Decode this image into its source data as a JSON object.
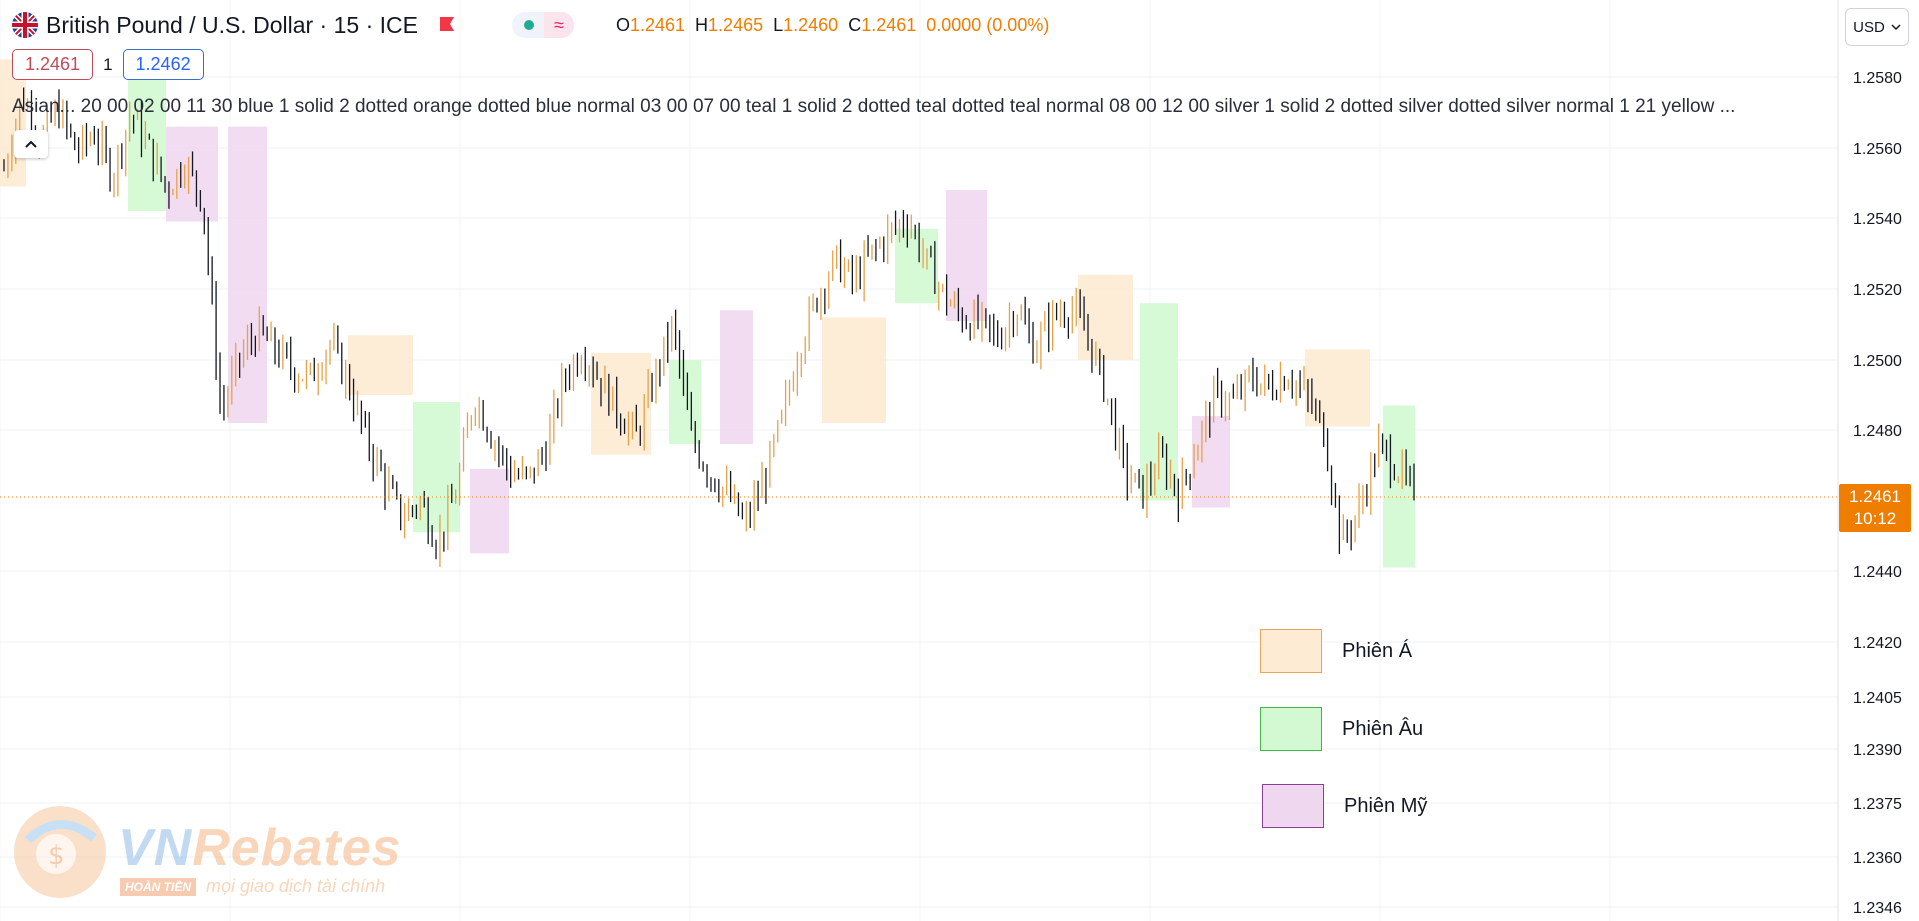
{
  "header": {
    "symbol_title": "British Pound / U.S. Dollar · 15 · ICE",
    "status_wave_glyph": "≈",
    "ohlc": [
      {
        "key": "O",
        "value": "1.2461"
      },
      {
        "key": "H",
        "value": "1.2465"
      },
      {
        "key": "L",
        "value": "1.2460"
      },
      {
        "key": "C",
        "value": "1.2461"
      }
    ],
    "change": "0.0000 (0.00%)"
  },
  "trade": {
    "sell_price": "1.2461",
    "quantity": "1",
    "buy_price": "1.2462"
  },
  "indicator": {
    "text": "Asian... 20 00 02 00 11 30 blue 1 solid 2 dotted orange dotted blue normal 03 00 07 00 teal 1 solid 2 dotted teal dotted teal normal 08 00 12 00 silver 1 solid 2 dotted silver dotted silver normal 1 21 yellow ..."
  },
  "currency": {
    "label": "USD"
  },
  "last_price": {
    "price": "1.2461",
    "countdown": "10:12"
  },
  "legend": {
    "items": [
      {
        "label": "Phiên Á",
        "fill": "#fdebd3",
        "border": "#e8a65a"
      },
      {
        "label": "Phiên Âu",
        "fill": "#d2f9d2",
        "border": "#43b54a"
      },
      {
        "label": "Phiên Mỹ",
        "fill": "#efd8ef",
        "border": "#8e3e9a"
      }
    ]
  },
  "watermark": {
    "brand_prefix": "VN",
    "brand_suffix": "Rebates",
    "badge": "HOÀN TIỀN",
    "tagline": "mọi giao dịch tài chính"
  },
  "colors": {
    "accent_orange": "#ef7d00",
    "asia_session": "#fdebd3",
    "europe_session": "#d2f9d2",
    "us_session": "#efd8ef",
    "candle_up": "#e8a14a",
    "candle_down": "#131722"
  },
  "chart_data": {
    "type": "candlestick",
    "instrument": "GBP/USD",
    "timeframe": "15",
    "y_ticks": [
      1.258,
      1.256,
      1.254,
      1.252,
      1.25,
      1.248,
      1.244,
      1.242,
      1.2405,
      1.239,
      1.2375,
      1.236,
      1.2346
    ],
    "last_price": 1.2461,
    "sessions": [
      {
        "session": "asia",
        "low": 1.2549,
        "high": 1.2585
      },
      {
        "session": "europe",
        "low": 1.2542,
        "high": 1.2585
      },
      {
        "session": "us",
        "low": 1.2539,
        "high": 1.2566
      },
      {
        "session": "us",
        "low": 1.2482,
        "high": 1.2566
      },
      {
        "session": "asia",
        "low": 1.249,
        "high": 1.2507
      },
      {
        "session": "europe",
        "low": 1.2451,
        "high": 1.2488
      },
      {
        "session": "us",
        "low": 1.2445,
        "high": 1.2469
      },
      {
        "session": "asia",
        "low": 1.2473,
        "high": 1.2502
      },
      {
        "session": "europe",
        "low": 1.2476,
        "high": 1.25
      },
      {
        "session": "us",
        "low": 1.2476,
        "high": 1.2514
      },
      {
        "session": "asia",
        "low": 1.2482,
        "high": 1.2512
      },
      {
        "session": "europe",
        "low": 1.2516,
        "high": 1.2537
      },
      {
        "session": "us",
        "low": 1.2511,
        "high": 1.2548
      },
      {
        "session": "asia",
        "low": 1.25,
        "high": 1.2524
      },
      {
        "session": "europe",
        "low": 1.246,
        "high": 1.2516
      },
      {
        "session": "us",
        "low": 1.2458,
        "high": 1.2484
      },
      {
        "session": "asia",
        "low": 1.2481,
        "high": 1.2503
      },
      {
        "session": "europe",
        "low": 1.2441,
        "high": 1.2487
      }
    ],
    "close_path": [
      1.2554,
      1.2575,
      1.2562,
      1.2571,
      1.2559,
      1.2564,
      1.2552,
      1.257,
      1.256,
      1.2548,
      1.2556,
      1.2545,
      1.2485,
      1.25,
      1.2508,
      1.2503,
      1.2497,
      1.2495,
      1.2505,
      1.2494,
      1.2478,
      1.2466,
      1.2455,
      1.246,
      1.2448,
      1.2462,
      1.249,
      1.2478,
      1.2468,
      1.2466,
      1.2475,
      1.2495,
      1.2503,
      1.2494,
      1.2485,
      1.2478,
      1.2495,
      1.251,
      1.2478,
      1.2468,
      1.2462,
      1.2453,
      1.2465,
      1.2482,
      1.2504,
      1.2518,
      1.2528,
      1.2522,
      1.253,
      1.2536,
      1.254,
      1.2528,
      1.2518,
      1.2512,
      1.251,
      1.2506,
      1.2515,
      1.2503,
      1.2512,
      1.2515,
      1.2506,
      1.249,
      1.2468,
      1.2462,
      1.2472,
      1.2462,
      1.2476,
      1.249,
      1.2488,
      1.2495,
      1.2492,
      1.2496,
      1.249,
      1.248,
      1.2448,
      1.2458,
      1.2475,
      1.247,
      1.2461
    ]
  }
}
